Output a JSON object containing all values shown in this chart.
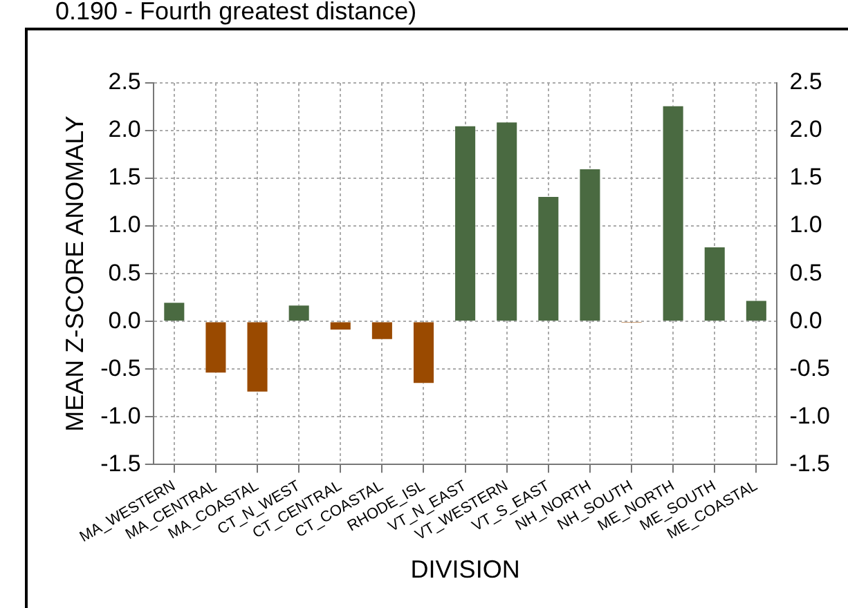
{
  "chart_data": {
    "type": "bar",
    "title": "0.190 - Fourth greatest distance)",
    "xlabel": "DIVISION",
    "ylabel": "MEAN Z-SCORE ANOMALY",
    "categories": [
      "MA_WESTERN",
      "MA_CENTRAL",
      "MA_COASTAL",
      "CT_N_WEST",
      "CT_CENTRAL",
      "CT_COASTAL",
      "RHODE_ISL",
      "VT_N_EAST",
      "VT_WESTERN",
      "VT_S_EAST",
      "NH_NORTH",
      "NH_SOUTH",
      "ME_NORTH",
      "ME_SOUTH",
      "ME_COASTAL"
    ],
    "values": [
      0.21,
      -0.55,
      -0.75,
      0.18,
      -0.1,
      -0.2,
      -0.66,
      2.06,
      2.1,
      1.32,
      1.61,
      -0.02,
      2.27,
      0.79,
      0.23
    ],
    "colors": [
      "#4a6a41",
      "#9a4a00",
      "#9a4a00",
      "#4a6a41",
      "#9a4a00",
      "#9a4a00",
      "#9a4a00",
      "#4a6a41",
      "#4a6a41",
      "#4a6a41",
      "#4a6a41",
      "#9a4a00",
      "#4a6a41",
      "#4a6a41",
      "#4a6a41"
    ],
    "ylim": [
      -1.5,
      2.5
    ],
    "yticks": [
      {
        "value": -1.5,
        "label": "-1.5"
      },
      {
        "value": -1,
        "label": "-1.0"
      },
      {
        "value": -0.5,
        "label": "-0.5"
      },
      {
        "value": 0,
        "label": "0.0"
      },
      {
        "value": 0.5,
        "label": "0.5"
      },
      {
        "value": 1,
        "label": "1.0"
      },
      {
        "value": 1.5,
        "label": "1.5"
      },
      {
        "value": 2,
        "label": "2.0"
      },
      {
        "value": 2.5,
        "label": "2.5"
      }
    ],
    "y2lim": [
      -1.5,
      2.5
    ],
    "y2ticks": [
      {
        "value": -1.5,
        "label": "-1.5"
      },
      {
        "value": -1,
        "label": "-1.0"
      },
      {
        "value": -0.5,
        "label": "-0.5"
      },
      {
        "value": 0,
        "label": "0.0"
      },
      {
        "value": 0.5,
        "label": "0.5"
      },
      {
        "value": 1,
        "label": "1.0"
      },
      {
        "value": 1.5,
        "label": "1.5"
      },
      {
        "value": 2,
        "label": "2.0"
      },
      {
        "value": 2.5,
        "label": "2.5"
      }
    ],
    "grid": true,
    "legend": false
  }
}
